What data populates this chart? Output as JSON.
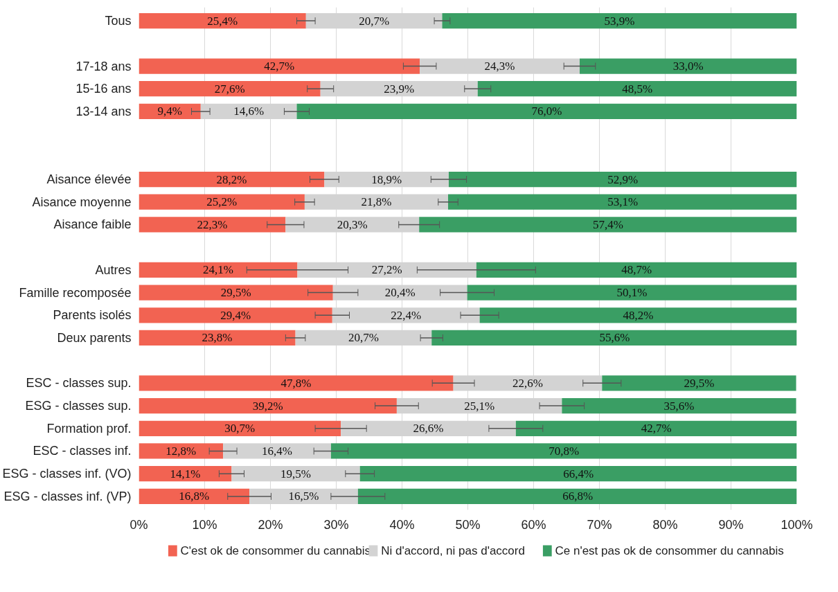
{
  "chart_data": {
    "type": "bar",
    "orientation": "horizontal",
    "stacked": true,
    "categories": [
      "Tous",
      null,
      "17-18 ans",
      "15-16 ans",
      "13-14 ans",
      null,
      null,
      "Aisance élevée",
      "Aisance moyenne",
      "Aisance faible",
      null,
      "Autres",
      "Famille recomposée",
      "Parents isolés",
      "Deux parents",
      null,
      "ESC - classes sup.",
      "ESG - classes sup.",
      "Formation prof.",
      "ESC - classes inf.",
      "ESG - classes inf. (VO)",
      "ESG - classes inf. (VP)"
    ],
    "series": [
      {
        "name": "C'est ok de consommer du cannabis",
        "color": "#f26352",
        "values": [
          25.4,
          null,
          42.7,
          27.6,
          9.4,
          null,
          null,
          28.2,
          25.2,
          22.3,
          null,
          24.1,
          29.5,
          29.4,
          23.8,
          null,
          47.8,
          39.2,
          30.7,
          12.8,
          14.1,
          16.8
        ],
        "value_labels": [
          "25,4%",
          null,
          "42,7%",
          "27,6%",
          "9,4%",
          null,
          null,
          "28,2%",
          "25,2%",
          "22,3%",
          null,
          "24,1%",
          "29,5%",
          "29,4%",
          "23,8%",
          null,
          "47,8%",
          "39,2%",
          "30,7%",
          "12,8%",
          "14,1%",
          "16,8%"
        ],
        "errors": [
          1.4,
          null,
          2.5,
          2.0,
          1.4,
          null,
          null,
          2.2,
          1.5,
          2.8,
          null,
          7.7,
          3.8,
          2.6,
          1.5,
          null,
          3.2,
          3.3,
          3.9,
          2.1,
          1.9,
          3.3
        ]
      },
      {
        "name": "Ni d'accord, ni pas d'accord",
        "color": "#d3d3d3",
        "values": [
          20.7,
          null,
          24.3,
          23.9,
          14.6,
          null,
          null,
          18.9,
          21.8,
          20.3,
          null,
          27.2,
          20.4,
          22.4,
          20.7,
          null,
          22.6,
          25.1,
          26.6,
          16.4,
          19.5,
          16.5
        ],
        "value_labels": [
          "20,7%",
          null,
          "24,3%",
          "23,9%",
          "14,6%",
          null,
          null,
          "18,9%",
          "21,8%",
          "20,3%",
          null,
          "27,2%",
          "20,4%",
          "22,4%",
          "20,7%",
          null,
          "22,6%",
          "25,1%",
          "26,6%",
          "16,4%",
          "19,5%",
          "16,5%"
        ],
        "errors": [
          1.2,
          null,
          2.4,
          2.0,
          1.9,
          null,
          null,
          2.7,
          1.5,
          3.1,
          null,
          9.0,
          4.1,
          2.9,
          1.7,
          null,
          2.9,
          3.4,
          4.1,
          2.6,
          2.2,
          4.1
        ]
      },
      {
        "name": "Ce n'est pas ok de consommer du cannabis",
        "color": "#3a9e64",
        "values": [
          53.9,
          null,
          33.0,
          48.5,
          76.0,
          null,
          null,
          52.9,
          53.1,
          57.4,
          null,
          48.7,
          50.1,
          48.2,
          55.6,
          null,
          29.5,
          35.6,
          42.7,
          70.8,
          66.4,
          66.8
        ],
        "value_labels": [
          "53,9%",
          null,
          "33,0%",
          "48,5%",
          "76,0%",
          null,
          null,
          "52,9%",
          "53,1%",
          "57,4%",
          null,
          "48,7%",
          "50,1%",
          "48,2%",
          "55,6%",
          null,
          "29,5%",
          "35,6%",
          "42,7%",
          "70,8%",
          "66,4%",
          "66,8%"
        ]
      }
    ],
    "xlim": [
      0,
      100
    ],
    "xticks": [
      {
        "value": 0,
        "label": "0%"
      },
      {
        "value": 10,
        "label": "10%"
      },
      {
        "value": 20,
        "label": "20%"
      },
      {
        "value": 30,
        "label": "30%"
      },
      {
        "value": 40,
        "label": "40%"
      },
      {
        "value": 50,
        "label": "50%"
      },
      {
        "value": 60,
        "label": "60%"
      },
      {
        "value": 70,
        "label": "70%"
      },
      {
        "value": 80,
        "label": "80%"
      },
      {
        "value": 90,
        "label": "90%"
      },
      {
        "value": 100,
        "label": "100%"
      }
    ],
    "grid": "x",
    "legend": "bottom"
  }
}
